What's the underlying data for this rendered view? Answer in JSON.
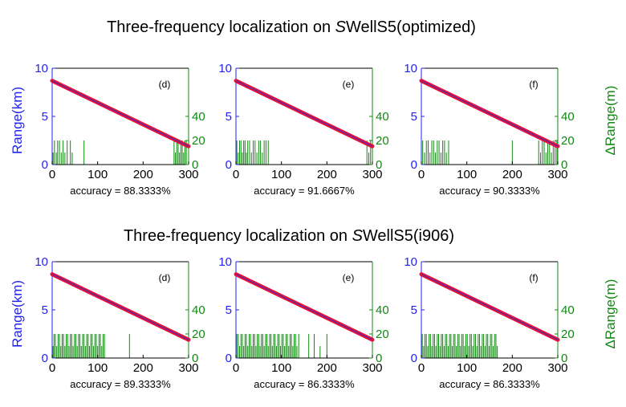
{
  "titles": [
    {
      "prefix": "Three-frequency localization on ",
      "italic": "S",
      "suffix": "WellS5(optimized)"
    },
    {
      "prefix": "Three-frequency localization on ",
      "italic": "S",
      "suffix": "WellS5(i906)"
    }
  ],
  "colors": {
    "left_axis": "#2222ee",
    "right_axis": "#118811",
    "estimate": "#e8103a",
    "truth": "#3333bb",
    "error_bars": "#118811"
  },
  "chart_data": [
    {
      "type": "line",
      "row": 0,
      "panel_label": "(d)",
      "left_ylabel": "Range(km)",
      "right_ylabel": "",
      "xlim": [
        0,
        300
      ],
      "ylim_left": [
        0,
        10
      ],
      "ylim_right": [
        0,
        80
      ],
      "xticks": [
        0,
        100,
        200,
        300
      ],
      "yticks_left": [
        0,
        5,
        10
      ],
      "yticks_right": [
        0,
        20,
        40
      ],
      "series": [
        {
          "x": [
            0,
            300
          ],
          "y": [
            8.7,
            1.9
          ]
        }
      ],
      "error_events": [
        [
          2,
          10
        ],
        [
          5,
          20
        ],
        [
          9,
          10
        ],
        [
          12,
          20
        ],
        [
          16,
          20
        ],
        [
          20,
          10
        ],
        [
          24,
          20
        ],
        [
          28,
          10
        ],
        [
          33,
          20
        ],
        [
          40,
          20
        ],
        [
          44,
          10
        ],
        [
          70,
          20
        ],
        [
          268,
          20
        ],
        [
          271,
          10
        ],
        [
          274,
          20
        ],
        [
          277,
          20
        ],
        [
          280,
          10
        ],
        [
          283,
          20
        ],
        [
          286,
          20
        ],
        [
          289,
          10
        ],
        [
          292,
          20
        ],
        [
          295,
          20
        ]
      ],
      "accuracy": "accuracy = 88.3333%"
    },
    {
      "type": "line",
      "row": 0,
      "panel_label": "(e)",
      "left_ylabel": "",
      "right_ylabel": "",
      "xlim": [
        0,
        300
      ],
      "ylim_left": [
        0,
        10
      ],
      "ylim_right": [
        0,
        80
      ],
      "xticks": [
        0,
        100,
        200,
        300
      ],
      "yticks_left": [
        0,
        5,
        10
      ],
      "yticks_right": [
        0,
        20,
        40
      ],
      "series": [
        {
          "x": [
            0,
            300
          ],
          "y": [
            8.7,
            1.9
          ]
        }
      ],
      "error_events": [
        [
          2,
          20
        ],
        [
          5,
          10
        ],
        [
          8,
          20
        ],
        [
          11,
          20
        ],
        [
          14,
          10
        ],
        [
          17,
          20
        ],
        [
          20,
          20
        ],
        [
          23,
          10
        ],
        [
          26,
          20
        ],
        [
          30,
          20
        ],
        [
          34,
          10
        ],
        [
          38,
          20
        ],
        [
          42,
          20
        ],
        [
          46,
          10
        ],
        [
          50,
          20
        ],
        [
          54,
          20
        ],
        [
          58,
          10
        ],
        [
          62,
          20
        ],
        [
          66,
          20
        ],
        [
          71,
          20
        ],
        [
          288,
          20
        ],
        [
          292,
          10
        ],
        [
          296,
          20
        ]
      ],
      "accuracy": "accuracy = 91.6667%"
    },
    {
      "type": "line",
      "row": 0,
      "panel_label": "(f)",
      "left_ylabel": "",
      "right_ylabel": "ΔRange(m)",
      "xlim": [
        0,
        300
      ],
      "ylim_left": [
        0,
        10
      ],
      "ylim_right": [
        0,
        80
      ],
      "xticks": [
        0,
        100,
        200,
        300
      ],
      "yticks_left": [
        0,
        5,
        10
      ],
      "yticks_right": [
        0,
        20,
        40
      ],
      "series": [
        {
          "x": [
            0,
            300
          ],
          "y": [
            8.7,
            1.9
          ]
        }
      ],
      "error_events": [
        [
          3,
          20
        ],
        [
          7,
          10
        ],
        [
          11,
          20
        ],
        [
          15,
          20
        ],
        [
          19,
          10
        ],
        [
          23,
          20
        ],
        [
          27,
          20
        ],
        [
          31,
          10
        ],
        [
          35,
          20
        ],
        [
          39,
          20
        ],
        [
          43,
          10
        ],
        [
          47,
          20
        ],
        [
          51,
          20
        ],
        [
          55,
          10
        ],
        [
          60,
          20
        ],
        [
          200,
          20
        ],
        [
          258,
          20
        ],
        [
          262,
          10
        ],
        [
          266,
          20
        ],
        [
          270,
          20
        ],
        [
          274,
          10
        ],
        [
          278,
          20
        ],
        [
          282,
          20
        ],
        [
          286,
          10
        ],
        [
          290,
          20
        ],
        [
          294,
          20
        ],
        [
          298,
          20
        ]
      ],
      "accuracy": "accuracy = 90.3333%"
    },
    {
      "type": "line",
      "row": 1,
      "panel_label": "(d)",
      "left_ylabel": "Range(km)",
      "right_ylabel": "",
      "xlim": [
        0,
        300
      ],
      "ylim_left": [
        0,
        10
      ],
      "ylim_right": [
        0,
        80
      ],
      "xticks": [
        0,
        100,
        200,
        300
      ],
      "yticks_left": [
        0,
        5,
        10
      ],
      "yticks_right": [
        0,
        20,
        40
      ],
      "series": [
        {
          "x": [
            0,
            300
          ],
          "y": [
            8.7,
            1.9
          ]
        }
      ],
      "error_events": [
        [
          2,
          10
        ],
        [
          4,
          20
        ],
        [
          7,
          20
        ],
        [
          10,
          10
        ],
        [
          13,
          20
        ],
        [
          16,
          20
        ],
        [
          19,
          10
        ],
        [
          22,
          20
        ],
        [
          25,
          20
        ],
        [
          28,
          10
        ],
        [
          31,
          20
        ],
        [
          34,
          20
        ],
        [
          37,
          10
        ],
        [
          40,
          20
        ],
        [
          43,
          20
        ],
        [
          46,
          10
        ],
        [
          49,
          20
        ],
        [
          52,
          20
        ],
        [
          55,
          10
        ],
        [
          58,
          20
        ],
        [
          61,
          20
        ],
        [
          64,
          10
        ],
        [
          67,
          20
        ],
        [
          70,
          20
        ],
        [
          73,
          10
        ],
        [
          76,
          20
        ],
        [
          79,
          20
        ],
        [
          82,
          10
        ],
        [
          85,
          20
        ],
        [
          88,
          20
        ],
        [
          91,
          10
        ],
        [
          94,
          20
        ],
        [
          97,
          20
        ],
        [
          100,
          10
        ],
        [
          103,
          20
        ],
        [
          106,
          20
        ],
        [
          109,
          10
        ],
        [
          112,
          20
        ],
        [
          115,
          20
        ],
        [
          170,
          20
        ]
      ],
      "accuracy": "accuracy = 89.3333%"
    },
    {
      "type": "line",
      "row": 1,
      "panel_label": "(e)",
      "left_ylabel": "",
      "right_ylabel": "",
      "xlim": [
        0,
        300
      ],
      "ylim_left": [
        0,
        10
      ],
      "ylim_right": [
        0,
        80
      ],
      "xticks": [
        0,
        100,
        200,
        300
      ],
      "yticks_left": [
        0,
        5,
        10
      ],
      "yticks_right": [
        0,
        20,
        40
      ],
      "series": [
        {
          "x": [
            0,
            300
          ],
          "y": [
            8.7,
            1.9
          ]
        }
      ],
      "error_events": [
        [
          2,
          20
        ],
        [
          5,
          20
        ],
        [
          8,
          10
        ],
        [
          11,
          20
        ],
        [
          14,
          20
        ],
        [
          17,
          10
        ],
        [
          20,
          20
        ],
        [
          23,
          20
        ],
        [
          26,
          10
        ],
        [
          29,
          20
        ],
        [
          32,
          20
        ],
        [
          35,
          10
        ],
        [
          38,
          20
        ],
        [
          41,
          20
        ],
        [
          44,
          10
        ],
        [
          47,
          20
        ],
        [
          50,
          20
        ],
        [
          53,
          10
        ],
        [
          56,
          20
        ],
        [
          59,
          20
        ],
        [
          62,
          10
        ],
        [
          65,
          20
        ],
        [
          68,
          20
        ],
        [
          71,
          10
        ],
        [
          74,
          20
        ],
        [
          77,
          20
        ],
        [
          80,
          10
        ],
        [
          83,
          20
        ],
        [
          86,
          20
        ],
        [
          89,
          10
        ],
        [
          92,
          20
        ],
        [
          95,
          20
        ],
        [
          98,
          10
        ],
        [
          101,
          20
        ],
        [
          104,
          20
        ],
        [
          107,
          10
        ],
        [
          110,
          20
        ],
        [
          113,
          20
        ],
        [
          116,
          10
        ],
        [
          119,
          20
        ],
        [
          122,
          20
        ],
        [
          125,
          10
        ],
        [
          128,
          20
        ],
        [
          131,
          20
        ],
        [
          134,
          10
        ],
        [
          138,
          20
        ],
        [
          160,
          20
        ],
        [
          172,
          20
        ],
        [
          185,
          10
        ],
        [
          200,
          20
        ]
      ],
      "accuracy": "accuracy = 86.3333%"
    },
    {
      "type": "line",
      "row": 1,
      "panel_label": "(f)",
      "left_ylabel": "",
      "right_ylabel": "ΔRange(m)",
      "xlim": [
        0,
        300
      ],
      "ylim_left": [
        0,
        10
      ],
      "ylim_right": [
        0,
        80
      ],
      "xticks": [
        0,
        100,
        200,
        300
      ],
      "yticks_left": [
        0,
        5,
        10
      ],
      "yticks_right": [
        0,
        20,
        40
      ],
      "series": [
        {
          "x": [
            0,
            300
          ],
          "y": [
            8.7,
            1.9
          ]
        }
      ],
      "error_events": [
        [
          2,
          20
        ],
        [
          5,
          10
        ],
        [
          8,
          20
        ],
        [
          11,
          20
        ],
        [
          14,
          10
        ],
        [
          17,
          20
        ],
        [
          20,
          20
        ],
        [
          23,
          10
        ],
        [
          26,
          20
        ],
        [
          29,
          20
        ],
        [
          32,
          10
        ],
        [
          35,
          20
        ],
        [
          38,
          20
        ],
        [
          41,
          10
        ],
        [
          44,
          20
        ],
        [
          47,
          20
        ],
        [
          50,
          10
        ],
        [
          53,
          20
        ],
        [
          56,
          20
        ],
        [
          59,
          10
        ],
        [
          62,
          20
        ],
        [
          65,
          20
        ],
        [
          68,
          10
        ],
        [
          71,
          20
        ],
        [
          74,
          20
        ],
        [
          77,
          10
        ],
        [
          80,
          20
        ],
        [
          83,
          20
        ],
        [
          86,
          10
        ],
        [
          89,
          20
        ],
        [
          92,
          20
        ],
        [
          95,
          10
        ],
        [
          98,
          20
        ],
        [
          101,
          20
        ],
        [
          104,
          10
        ],
        [
          107,
          20
        ],
        [
          110,
          20
        ],
        [
          113,
          10
        ],
        [
          116,
          20
        ],
        [
          119,
          20
        ],
        [
          122,
          10
        ],
        [
          125,
          20
        ],
        [
          128,
          20
        ],
        [
          131,
          10
        ],
        [
          134,
          20
        ],
        [
          137,
          20
        ],
        [
          140,
          10
        ],
        [
          143,
          20
        ],
        [
          146,
          20
        ],
        [
          149,
          10
        ],
        [
          152,
          20
        ],
        [
          155,
          20
        ],
        [
          158,
          10
        ],
        [
          161,
          20
        ],
        [
          164,
          20
        ],
        [
          167,
          10
        ]
      ],
      "accuracy": "accuracy = 86.3333%"
    }
  ]
}
